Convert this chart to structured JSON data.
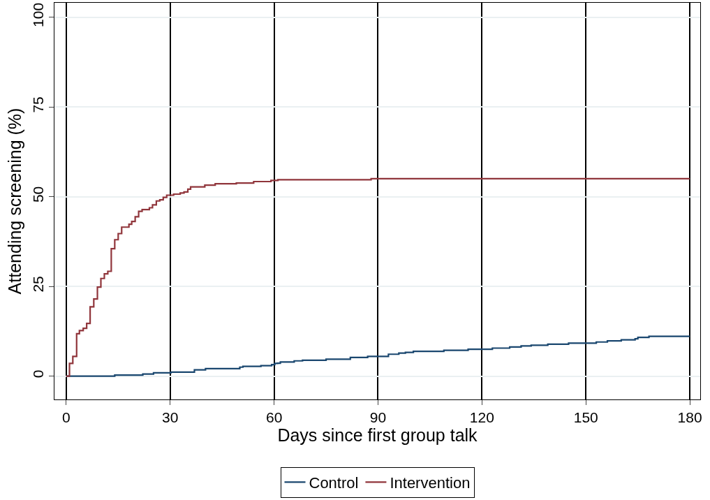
{
  "chart_data": {
    "type": "step",
    "xlabel": "Days since first group talk",
    "ylabel": "Attending screening (%)",
    "xlim": [
      -3.4,
      183
    ],
    "ylim": [
      -6.5,
      104
    ],
    "xticks": [
      0,
      30,
      60,
      90,
      120,
      150,
      180
    ],
    "yticks": [
      0,
      25,
      50,
      75,
      100
    ],
    "grid": true,
    "legend": "bottom",
    "marker": "none",
    "line_style": "solid",
    "series": [
      {
        "name": "Control",
        "color": "#1a476f",
        "x": [
          0,
          14,
          22.1,
          25.2,
          30.2,
          37,
          40.2,
          50.1,
          51,
          56.2,
          59.3,
          60.2,
          61,
          61.8,
          65.8,
          68.2,
          75,
          82,
          87,
          93,
          96,
          97.9,
          100.2,
          109,
          116,
          123,
          128,
          131.3,
          134.2,
          139,
          145,
          153,
          156.2,
          160.2,
          164.2,
          165,
          168.2,
          180
        ],
        "values": [
          0,
          0.3,
          0.56,
          0.9,
          1.1,
          1.75,
          2.1,
          2.5,
          2.7,
          2.9,
          3.2,
          3.55,
          3.6,
          3.95,
          4.25,
          4.4,
          4.7,
          5.2,
          5.5,
          6.1,
          6.4,
          6.6,
          6.9,
          7.2,
          7.5,
          7.8,
          8.1,
          8.4,
          8.6,
          8.9,
          9.2,
          9.5,
          9.8,
          10.1,
          10.4,
          10.8,
          11.1,
          11.1
        ]
      },
      {
        "name": "Intervention",
        "color": "#90353b",
        "x": [
          0,
          0.94,
          1.9,
          3,
          3.8,
          4.9,
          5.9,
          6.9,
          7.95,
          9,
          10,
          11,
          12,
          13,
          14,
          15,
          16,
          18.1,
          18.9,
          19.9,
          20.9,
          21.9,
          24,
          24.9,
          26,
          27,
          28,
          29,
          31,
          32.9,
          34,
          35.1,
          35.9,
          40,
          43,
          49.1,
          54.1,
          59.1,
          61.1,
          88,
          180
        ],
        "values": [
          0,
          3.55,
          5.5,
          11.8,
          12.7,
          13.3,
          14.7,
          19.3,
          21.5,
          24.8,
          27.2,
          28.5,
          29.2,
          35.5,
          38,
          39.7,
          41.5,
          42.3,
          43.1,
          44.4,
          45.9,
          46.4,
          46.9,
          47.7,
          48.8,
          49.1,
          49.8,
          50.4,
          50.7,
          51,
          51.3,
          52.1,
          52.7,
          53.2,
          53.6,
          53.8,
          54.2,
          54.5,
          54.7,
          55,
          55
        ]
      }
    ]
  }
}
